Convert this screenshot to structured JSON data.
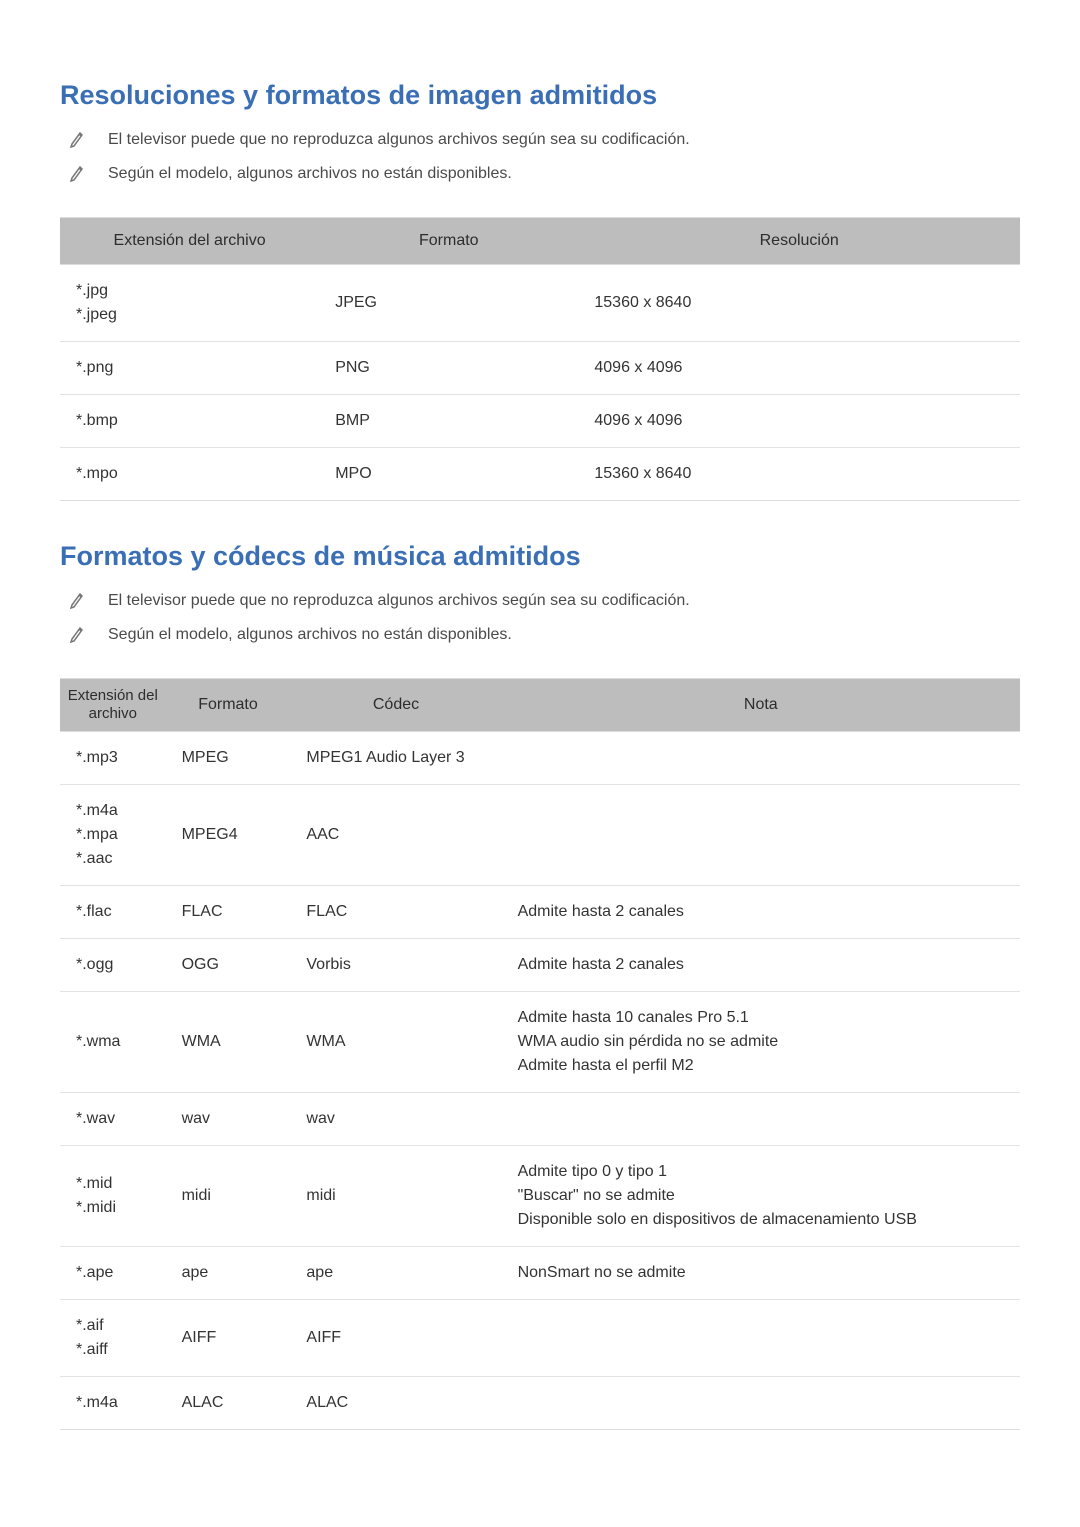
{
  "section_image": {
    "heading": "Resoluciones y formatos de imagen admitidos",
    "notes": [
      "El televisor puede que no reproduzca algunos archivos según sea su codificación.",
      "Según el modelo, algunos archivos no están disponibles."
    ],
    "headers": {
      "extension": "Extensión del archivo",
      "format": "Formato",
      "resolution": "Resolución"
    },
    "rows": [
      {
        "ext": "*.jpg\n*.jpeg",
        "format": "JPEG",
        "res": "15360 x 8640"
      },
      {
        "ext": "*.png",
        "format": "PNG",
        "res": "4096 x 4096"
      },
      {
        "ext": "*.bmp",
        "format": "BMP",
        "res": "4096 x 4096"
      },
      {
        "ext": "*.mpo",
        "format": "MPO",
        "res": "15360 x 8640"
      }
    ]
  },
  "section_music": {
    "heading": "Formatos y códecs de música admitidos",
    "notes": [
      "El televisor puede que no reproduzca algunos archivos según sea su codificación.",
      "Según el modelo, algunos archivos no están disponibles."
    ],
    "headers": {
      "extension": "Extensión del archivo",
      "format": "Formato",
      "codec": "Códec",
      "note": "Nota"
    },
    "rows": [
      {
        "ext": "*.mp3",
        "format": "MPEG",
        "codec": "MPEG1 Audio Layer 3",
        "note": ""
      },
      {
        "ext": "*.m4a\n*.mpa\n*.aac",
        "format": "MPEG4",
        "codec": "AAC",
        "note": ""
      },
      {
        "ext": "*.flac",
        "format": "FLAC",
        "codec": "FLAC",
        "note": "Admite hasta 2 canales"
      },
      {
        "ext": "*.ogg",
        "format": "OGG",
        "codec": "Vorbis",
        "note": "Admite hasta 2 canales"
      },
      {
        "ext": "*.wma",
        "format": "WMA",
        "codec": "WMA",
        "note": "Admite hasta 10 canales Pro 5.1\nWMA audio sin pérdida no se admite\nAdmite hasta el perfil M2"
      },
      {
        "ext": "*.wav",
        "format": "wav",
        "codec": "wav",
        "note": ""
      },
      {
        "ext": "*.mid\n*.midi",
        "format": "midi",
        "codec": "midi",
        "note": "Admite tipo 0 y tipo 1\n\"Buscar\" no se admite\nDisponible solo en dispositivos de almacenamiento USB"
      },
      {
        "ext": "*.ape",
        "format": "ape",
        "codec": "ape",
        "note": "NonSmart no se admite"
      },
      {
        "ext": "*.aif\n*.aiff",
        "format": "AIFF",
        "codec": "AIFF",
        "note": ""
      },
      {
        "ext": "*.m4a",
        "format": "ALAC",
        "codec": "ALAC",
        "note": ""
      }
    ]
  },
  "colors": {
    "heading_color": "#3a6fb5",
    "table_header_bg": "#bdbdbd",
    "border_color": "#dcdcdc",
    "row_border": "#e3e3e3",
    "text_color": "#333333"
  }
}
